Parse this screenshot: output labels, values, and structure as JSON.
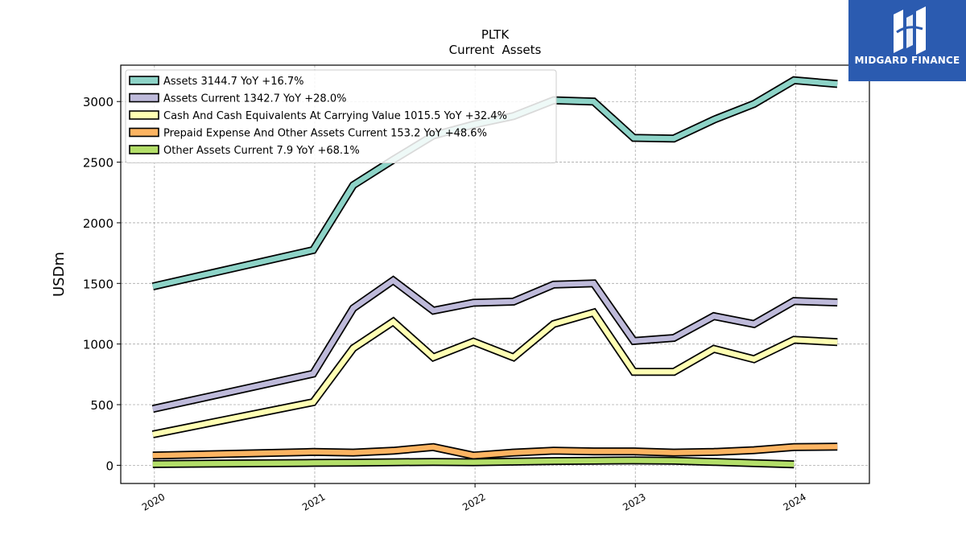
{
  "brand": {
    "name": "MIDGARD FINANCE",
    "bg_color": "#2b5bb0"
  },
  "chart_data": {
    "type": "line",
    "title": "PLTK",
    "subtitle": "Current  Assets",
    "ylabel": "USDm",
    "xlabel": "",
    "ylim": [
      -150,
      3300
    ],
    "xlim": [
      2019.79,
      2024.46
    ],
    "yticks": [
      0,
      500,
      1000,
      1500,
      2000,
      2500,
      3000
    ],
    "xticks": [
      2020,
      2021,
      2022,
      2023,
      2024
    ],
    "xtick_labels": [
      "2020",
      "2021",
      "2022",
      "2023",
      "2024"
    ],
    "grid": true,
    "legend_position": "top-left",
    "series": [
      {
        "name": "Assets  3144.7 YoY +16.7%",
        "color": "#8dd3c7",
        "x": [
          2019.99,
          2020.99,
          2021.24,
          2021.49,
          2021.74,
          2021.99,
          2022.24,
          2022.49,
          2022.74,
          2022.99,
          2023.24,
          2023.49,
          2023.74,
          2023.99,
          2024.26
        ],
        "values": [
          1475,
          1775,
          2310,
          2520,
          2720,
          2810,
          2880,
          3010,
          3000,
          2700,
          2695,
          2850,
          2980,
          3175,
          3145
        ]
      },
      {
        "name": "Assets Current  1342.7 YoY +28.0%",
        "color": "#bebada",
        "x": [
          2019.99,
          2020.99,
          2021.24,
          2021.49,
          2021.74,
          2021.99,
          2022.24,
          2022.49,
          2022.74,
          2022.99,
          2023.24,
          2023.49,
          2023.74,
          2023.99,
          2024.26
        ],
        "values": [
          465,
          755,
          1295,
          1525,
          1275,
          1340,
          1350,
          1490,
          1500,
          1025,
          1050,
          1230,
          1165,
          1355,
          1343
        ]
      },
      {
        "name": "Cash And Cash Equivalents At Carrying Value  1015.5 YoY +32.4%",
        "color": "#ffffb3",
        "x": [
          2019.99,
          2020.99,
          2021.24,
          2021.49,
          2021.74,
          2021.99,
          2022.24,
          2022.49,
          2022.74,
          2022.99,
          2023.24,
          2023.49,
          2023.74,
          2023.99,
          2024.26
        ],
        "values": [
          255,
          520,
          965,
          1185,
          890,
          1020,
          890,
          1165,
          1260,
          770,
          770,
          960,
          875,
          1035,
          1016
        ]
      },
      {
        "name": "Prepaid Expense And Other Assets Current  153.2 YoY +48.6%",
        "color": "#fdb462",
        "x": [
          2019.99,
          2020.99,
          2021.24,
          2021.49,
          2021.74,
          2021.99,
          2022.24,
          2022.49,
          2022.74,
          2022.99,
          2023.24,
          2023.49,
          2023.74,
          2023.99,
          2024.26
        ],
        "values": [
          80,
          110,
          105,
          120,
          150,
          80,
          105,
          120,
          115,
          115,
          105,
          110,
          125,
          150,
          153
        ]
      },
      {
        "name": "Other Assets Current  7.9 YoY +68.1%",
        "color": "#b3de69",
        "x": [
          2019.99,
          2020.99,
          2021.24,
          2021.49,
          2021.74,
          2021.99,
          2022.24,
          2022.49,
          2022.74,
          2022.99,
          2023.24,
          2023.49,
          2023.74,
          2023.99
        ],
        "values": [
          10,
          20,
          22,
          25,
          28,
          25,
          30,
          35,
          38,
          40,
          38,
          28,
          18,
          8
        ]
      }
    ]
  }
}
